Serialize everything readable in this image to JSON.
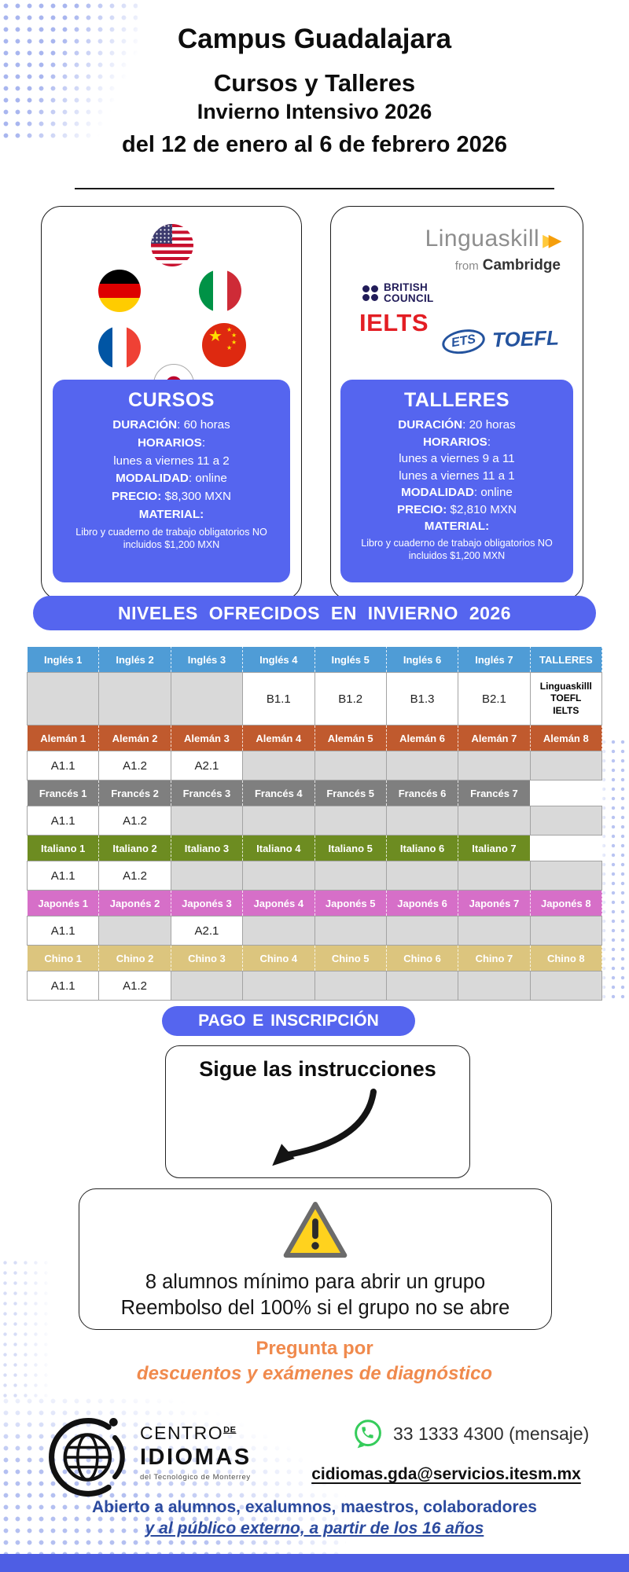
{
  "page": {
    "accent_blue": "#5565EF",
    "bar_color": "#4E5EE4",
    "dot_color": "#A9B6EF"
  },
  "header": {
    "line1": "Campus Guadalajara",
    "line2": "Cursos y Talleres",
    "line3": "Invierno Intensivo 2026",
    "line4": "del 12 de enero al 6 de febrero 2026"
  },
  "exams": {
    "linguaskill": "Linguaskill",
    "from": "from",
    "cambridge": "Cambridge",
    "british1": "BRITISH",
    "british2": "COUNCIL",
    "ielts": "IELTS",
    "ets": "ETS",
    "toefl": "TOEFL"
  },
  "cursos": {
    "title": "CURSOS",
    "lines": [
      {
        "label": "DURACIÓN",
        "text": ": 60 horas"
      },
      {
        "label": "HORARIOS",
        "text": ":"
      },
      {
        "text": "lunes a viernes 11 a 2"
      },
      {
        "label": "MODALIDAD",
        "text": ": online"
      },
      {
        "label": "PRECIO:",
        "text": " $8,300 MXN"
      },
      {
        "label": "MATERIAL:",
        "text": ""
      },
      {
        "text": "Libro y cuaderno de trabajo obligatorios NO incluidos $1,200 MXN",
        "small": true
      }
    ]
  },
  "talleres": {
    "title": "TALLERES",
    "lines": [
      {
        "label": "DURACIÓN",
        "text": ": 20 horas"
      },
      {
        "label": "HORARIOS",
        "text": ":"
      },
      {
        "text": "lunes a viernes 9 a 11"
      },
      {
        "text": "lunes a viernes 11 a 1"
      },
      {
        "label": "MODALIDAD",
        "text": ": online"
      },
      {
        "label": "PRECIO:",
        "text": " $2,810 MXN"
      },
      {
        "label": "MATERIAL:",
        "text": ""
      },
      {
        "text": "Libro y cuaderno de trabajo obligatorios NO incluidos $1,200 MXN",
        "small": true
      }
    ]
  },
  "banner": "NIVELES OFRECIDOS EN INVIERNO 2026",
  "table": {
    "rows": [
      {
        "type": "header",
        "bg": "#4F9CD6",
        "cells": [
          "Inglés 1",
          "Inglés 2",
          "Inglés 3",
          "Inglés 4",
          "Inglés 5",
          "Inglés 6",
          "Inglés 7",
          "TALLERES"
        ]
      },
      {
        "type": "levels",
        "cells": [
          "",
          "",
          "",
          "B1.1",
          "B1.2",
          "B1.3",
          "B2.1",
          [
            "Linguaskilll",
            "TOEFL",
            "IELTS"
          ]
        ]
      },
      {
        "type": "header",
        "bg": "#C05A2E",
        "cells": [
          "Alemán 1",
          "Alemán 2",
          "Alemán 3",
          "Alemán 4",
          "Alemán 5",
          "Alemán 6",
          "Alemán 7",
          "Alemán 8"
        ]
      },
      {
        "type": "levels",
        "cells": [
          "A1.1",
          "A1.2",
          "A2.1",
          "",
          "",
          "",
          "",
          ""
        ]
      },
      {
        "type": "header",
        "bg": "#7F7F7F",
        "cells": [
          "Francés 1",
          "Francés 2",
          "Francés 3",
          "Francés 4",
          "Francés 5",
          "Francés 6",
          "Francés 7",
          null
        ]
      },
      {
        "type": "levels",
        "cells": [
          "A1.1",
          "A1.2",
          "",
          "",
          "",
          "",
          "",
          ""
        ]
      },
      {
        "type": "header",
        "bg": "#6D8C21",
        "cells": [
          "Italiano 1",
          "Italiano 2",
          "Italiano 3",
          "Italiano 4",
          "Italiano 5",
          "Italiano 6",
          "Italiano 7",
          null
        ]
      },
      {
        "type": "levels",
        "cells": [
          "A1.1",
          "A1.2",
          "",
          "",
          "",
          "",
          "",
          ""
        ]
      },
      {
        "type": "header",
        "bg": "#D66FC8",
        "cells": [
          "Japonés 1",
          "Japonés 2",
          "Japonés 3",
          "Japonés 4",
          "Japonés 5",
          "Japonés 6",
          "Japonés 7",
          "Japonés 8"
        ]
      },
      {
        "type": "levels",
        "cells": [
          "A1.1",
          "",
          "A2.1",
          "",
          "",
          "",
          "",
          ""
        ]
      },
      {
        "type": "header",
        "bg": "#DCC57E",
        "cells": [
          "Chino 1",
          "Chino 2",
          "Chino 3",
          "Chino 4",
          "Chino 5",
          "Chino 6",
          "Chino 7",
          "Chino 8"
        ]
      },
      {
        "type": "levels",
        "cells": [
          "A1.1",
          "A1.2",
          "",
          "",
          "",
          "",
          "",
          ""
        ]
      }
    ]
  },
  "pago": "PAGO E INSCRIPCIÓN",
  "instructions": {
    "title": "Sigue las instrucciones"
  },
  "warning": {
    "line1": "8 alumnos mínimo para abrir un grupo",
    "line2": "Reembolso del 100% si el grupo no se abre"
  },
  "promo": {
    "line1": "Pregunta por",
    "line2": "descuentos y exámenes de diagnóstico",
    "color": "#F08A4D"
  },
  "footer": {
    "logo": {
      "centro": "CENTRO",
      "de": "DE",
      "idiomas": "IDIOMAS",
      "tagline": "del Tecnológico de Monterrey"
    },
    "phone": "33 1333 4300 (mensaje)",
    "email": "cidiomas.gda@servicios.itesm.mx"
  },
  "audience": {
    "line1": "Abierto a alumnos, exalumnos, maestros, colaboradores",
    "line2": "y al público externo, a partir de los 16 años",
    "color": "#2B4A9E"
  }
}
